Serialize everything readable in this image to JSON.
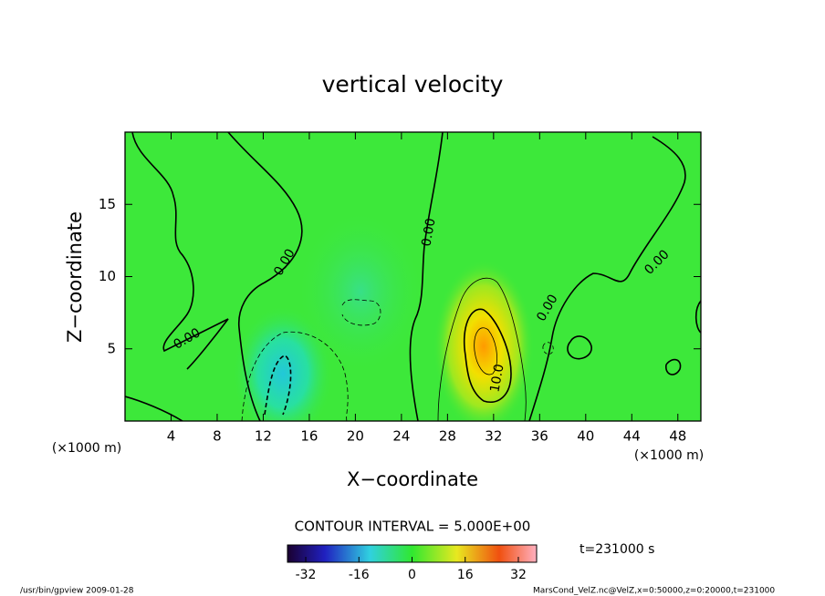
{
  "chart_data": {
    "type": "contour",
    "title": "vertical velocity",
    "x_label": "X−coordinate",
    "y_label": "Z−coordinate",
    "x_unit": "(×1000 m)",
    "y_unit": "(×1000 m)",
    "xlim": [
      0,
      50
    ],
    "ylim": [
      0,
      20
    ],
    "xticks": [
      4,
      8,
      12,
      16,
      20,
      24,
      28,
      32,
      36,
      40,
      44,
      48
    ],
    "yticks": [
      5,
      10,
      15
    ],
    "contour_labels": [
      "0.00",
      "0.00",
      "0.00",
      "0.00",
      "0.00",
      "10.0"
    ],
    "contour_interval_label": "CONTOUR INTERVAL = 5.000E+00",
    "colorbar": {
      "clim": [
        -37.5,
        37.5
      ],
      "ticks": [
        -32,
        -16,
        0,
        16,
        32
      ]
    },
    "time_label": "t=231000 s",
    "footer_left": "/usr/bin/gpview  2009-01-28",
    "footer_right": "MarsCond_VelZ.nc@VelZ,x=0:50000,z=0:20000,t=231000"
  }
}
